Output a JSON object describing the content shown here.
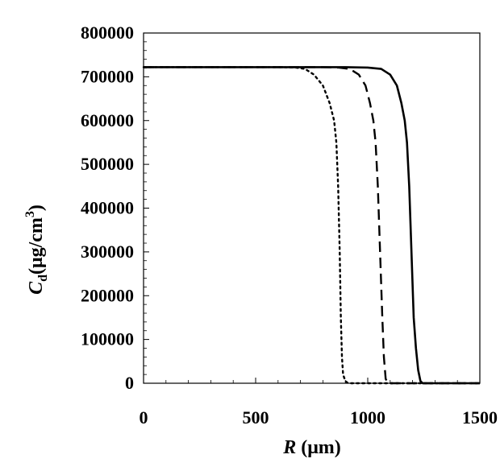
{
  "chart_data": {
    "type": "line",
    "x_ticks": [
      "0",
      "500",
      "1000",
      "1500"
    ],
    "y_ticks": [
      "0",
      "100000",
      "200000",
      "300000",
      "400000",
      "500000",
      "600000",
      "700000",
      "800000"
    ],
    "xlim": [
      0,
      1500
    ],
    "ylim": [
      0,
      800000
    ],
    "xlabel": {
      "symbol": "R",
      "unit": " (μm)"
    },
    "ylabel": {
      "symbol": "C",
      "subscript": "d",
      "unit": "(μg/cm",
      "superscript": "3",
      "close": ")"
    },
    "grid": false,
    "legend": "none",
    "series": [
      {
        "style": "dotted",
        "x": [
          0,
          600,
          680,
          720,
          760,
          800,
          830,
          850,
          860,
          868,
          875,
          880,
          885,
          890,
          900,
          910,
          920,
          1500
        ],
        "y": [
          722000,
          722000,
          721000,
          718000,
          705000,
          680000,
          640000,
          600000,
          550000,
          450000,
          300000,
          150000,
          60000,
          20000,
          5000,
          1000,
          0,
          0
        ]
      },
      {
        "style": "dashed",
        "x": [
          0,
          800,
          870,
          920,
          960,
          990,
          1010,
          1025,
          1035,
          1045,
          1055,
          1065,
          1072,
          1080,
          1090,
          1500
        ],
        "y": [
          722000,
          722000,
          721000,
          718000,
          705000,
          680000,
          640000,
          600000,
          550000,
          450000,
          300000,
          150000,
          60000,
          10000,
          0,
          0
        ]
      },
      {
        "style": "solid",
        "x": [
          0,
          900,
          1000,
          1060,
          1100,
          1130,
          1150,
          1165,
          1175,
          1185,
          1195,
          1205,
          1215,
          1225,
          1235,
          1245,
          1500
        ],
        "y": [
          722000,
          722000,
          721000,
          718000,
          705000,
          680000,
          640000,
          600000,
          550000,
          450000,
          300000,
          150000,
          80000,
          30000,
          5000,
          0,
          0
        ]
      }
    ]
  }
}
